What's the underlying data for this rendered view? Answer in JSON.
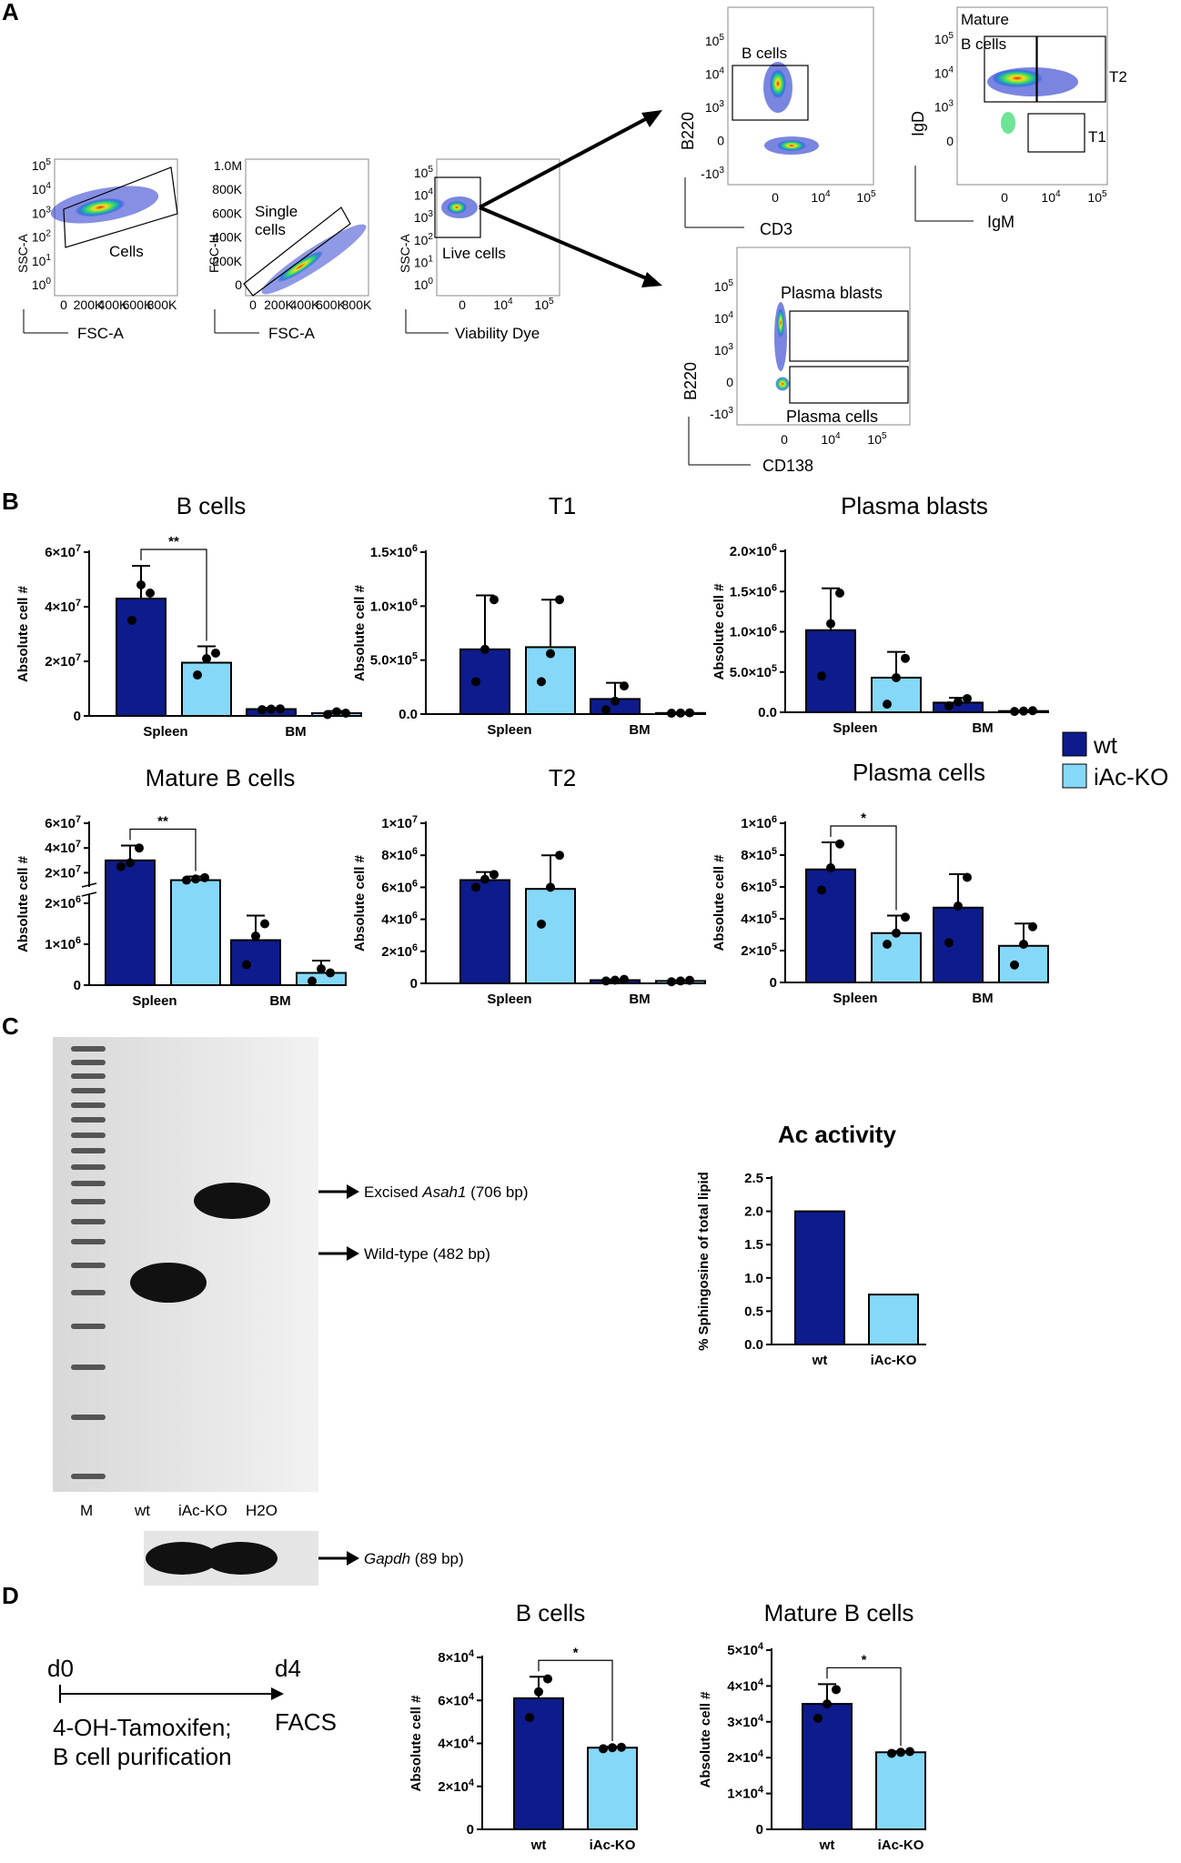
{
  "panels": {
    "A": "A",
    "B": "B",
    "C": "C",
    "D": "D"
  },
  "flow": {
    "p1": {
      "gate": "Cells",
      "ylabel": "SSC-A",
      "xlabel": "FSC-A",
      "yticks": [
        "10^5",
        "10^4",
        "10^3",
        "10^2",
        "10^1",
        "10^0"
      ],
      "xticks": [
        "0",
        "200K",
        "400K",
        "600K",
        "800K"
      ]
    },
    "p2": {
      "gate1": "Single",
      "gate2": "cells",
      "ylabel": "FSC-H",
      "xlabel": "FSC-A",
      "yticks": [
        "1.0M",
        "800K",
        "600K",
        "400K",
        "200K",
        "0"
      ],
      "xticks": [
        "0",
        "200K",
        "400K",
        "600K",
        "800K"
      ]
    },
    "p3": {
      "gate": "Live cells",
      "ylabel": "SSC-A",
      "xlabel": "Viability Dye",
      "yticks": [
        "10^5",
        "10^4",
        "10^3",
        "10^2",
        "10^1",
        "10^0"
      ],
      "xticks": [
        "0",
        "10^4",
        "10^5"
      ]
    },
    "p4": {
      "gate": "B cells",
      "ylabel": "B220",
      "xlabel": "CD3",
      "yticks": [
        "10^5",
        "10^4",
        "10^3",
        "0",
        "-10^3"
      ],
      "xticks": [
        "0",
        "10^4",
        "10^5"
      ]
    },
    "p5": {
      "gate1a": "Mature",
      "gate1b": "B cells",
      "gate2": "T2",
      "gate3": "T1",
      "ylabel": "IgD",
      "xlabel": "IgM",
      "yticks": [
        "10^5",
        "10^4",
        "10^3",
        "0"
      ],
      "xticks": [
        "0",
        "10^4",
        "10^5"
      ]
    },
    "p6": {
      "gate1": "Plasma blasts",
      "gate2": "Plasma cells",
      "ylabel": "B220",
      "xlabel": "CD138",
      "yticks": [
        "10^5",
        "10^4",
        "10^3",
        "0",
        "-10^3"
      ],
      "xticks": [
        "0",
        "10^4",
        "10^5"
      ]
    }
  },
  "legend": {
    "wt": "wt",
    "ko": "iAc-KO"
  },
  "colors": {
    "wt": "#0d1b8c",
    "ko": "#86d8f8",
    "dot": "#000000"
  },
  "gel": {
    "lanes": [
      "M",
      "wt",
      "iAc-KO",
      "H2O"
    ],
    "band1_prefix": "Excised ",
    "band1_gene": "Asah1",
    "band1_suffix": " (706 bp)",
    "band2": "Wild-type (482 bp)",
    "gapdh_gene": "Gapdh",
    "gapdh_suffix": " (89 bp)"
  },
  "timeline": {
    "d0": "d0",
    "d4": "d4",
    "line1": "4-OH-Tamoxifen;",
    "line2": "B cell purification",
    "facs": "FACS"
  },
  "sig_labels": {
    "b": "**",
    "mb": "**",
    "pc": "*",
    "db": "*",
    "dmb": "*"
  },
  "chart_data": [
    {
      "id": "b",
      "type": "bar",
      "title": "B cells",
      "ylabel": "Absolute cell #",
      "categories": [
        "Spleen",
        "BM"
      ],
      "ylim": [
        0,
        60000000
      ],
      "yticks": [
        "0",
        "2×10^7",
        "4×10^7",
        "6×10^7"
      ],
      "series": [
        {
          "name": "wt",
          "values": [
            43000000,
            2500000
          ],
          "sd": [
            12000000,
            400000
          ],
          "points": [
            [
              35000000,
              48000000,
              45000000
            ],
            [
              2300000,
              2500000,
              2600000
            ]
          ]
        },
        {
          "name": "iAc-KO",
          "values": [
            19500000,
            1000000
          ],
          "sd": [
            6000000,
            800000
          ],
          "points": [
            [
              15000000,
              21000000,
              23000000
            ],
            [
              500000,
              1500000,
              1000000
            ]
          ]
        }
      ]
    },
    {
      "id": "t1",
      "type": "bar",
      "title": "T1",
      "ylabel": "Absolute cell #",
      "categories": [
        "Spleen",
        "BM"
      ],
      "ylim": [
        0,
        1500000
      ],
      "yticks": [
        "0.0",
        "5.0×10^5",
        "1.0×10^6",
        "1.5×10^6"
      ],
      "series": [
        {
          "name": "wt",
          "values": [
            600000,
            140000
          ],
          "sd": [
            500000,
            150000
          ],
          "points": [
            [
              300000,
              600000,
              1060000
            ],
            [
              40000,
              120000,
              260000
            ]
          ]
        },
        {
          "name": "iAc-KO",
          "values": [
            620000,
            10000
          ],
          "sd": [
            440000,
            5000
          ],
          "points": [
            [
              300000,
              560000,
              1060000
            ],
            [
              8000,
              10000,
              12000
            ]
          ]
        }
      ]
    },
    {
      "id": "pb",
      "type": "bar",
      "title": "Plasma blasts",
      "ylabel": "Absolute cell #",
      "categories": [
        "Spleen",
        "BM"
      ],
      "ylim": [
        0,
        2000000
      ],
      "yticks": [
        "0.0",
        "5.0×10^5",
        "1.0×10^6",
        "1.5×10^6",
        "2.0×10^6"
      ],
      "series": [
        {
          "name": "wt",
          "values": [
            1020000,
            120000
          ],
          "sd": [
            520000,
            60000
          ],
          "points": [
            [
              450000,
              1100000,
              1480000
            ],
            [
              80000,
              130000,
              170000
            ]
          ]
        },
        {
          "name": "iAc-KO",
          "values": [
            430000,
            15000
          ],
          "sd": [
            320000,
            8000
          ],
          "points": [
            [
              100000,
              430000,
              670000
            ],
            [
              10000,
              15000,
              20000
            ]
          ]
        }
      ]
    },
    {
      "id": "mb",
      "type": "bar",
      "title": "Mature B cells",
      "ylabel": "Absolute cell #",
      "categories": [
        "Spleen",
        "BM"
      ],
      "broken_axis": true,
      "ylim_lower": [
        0,
        2000000
      ],
      "ylim_upper": [
        0,
        60000000
      ],
      "yticks": [
        "0",
        "1×10^6",
        "2×10^6",
        "2×10^7",
        "4×10^7",
        "6×10^7"
      ],
      "series": [
        {
          "name": "wt",
          "values": [
            30000000,
            1100000
          ],
          "sd": [
            12000000,
            600000
          ],
          "points": [
            [
              25000000,
              28000000,
              40000000
            ],
            [
              500000,
              1200000,
              1500000
            ]
          ]
        },
        {
          "name": "iAc-KO",
          "values": [
            14000000,
            300000
          ],
          "sd": [
            3000000,
            300000
          ],
          "points": [
            [
              14000000,
              15000000,
              16000000
            ],
            [
              100000,
              400000,
              300000
            ]
          ]
        }
      ]
    },
    {
      "id": "t2",
      "type": "bar",
      "title": "T2",
      "ylabel": "Absolute cell #",
      "categories": [
        "Spleen",
        "BM"
      ],
      "ylim": [
        0,
        10000000
      ],
      "yticks": [
        "0",
        "2×10^6",
        "4×10^6",
        "6×10^6",
        "8×10^6",
        "1×10^7"
      ],
      "series": [
        {
          "name": "wt",
          "values": [
            6450000,
            200000
          ],
          "sd": [
            500000,
            50000
          ],
          "points": [
            [
              6000000,
              6500000,
              6800000
            ],
            [
              150000,
              200000,
              250000
            ]
          ]
        },
        {
          "name": "iAc-KO",
          "values": [
            5900000,
            150000
          ],
          "sd": [
            2100000,
            40000
          ],
          "points": [
            [
              3700000,
              6000000,
              8000000
            ],
            [
              100000,
              150000,
              190000
            ]
          ]
        }
      ]
    },
    {
      "id": "pc",
      "type": "bar",
      "title": "Plasma cells",
      "ylabel": "Absolute cell #",
      "categories": [
        "Spleen",
        "BM"
      ],
      "ylim": [
        0,
        1000000
      ],
      "yticks": [
        "0",
        "2×10^5",
        "4×10^5",
        "6×10^5",
        "8×10^5",
        "1×10^6"
      ],
      "series": [
        {
          "name": "wt",
          "values": [
            710000,
            470000
          ],
          "sd": [
            170000,
            210000
          ],
          "points": [
            [
              580000,
              720000,
              870000
            ],
            [
              250000,
              480000,
              660000
            ]
          ]
        },
        {
          "name": "iAc-KO",
          "values": [
            310000,
            230000
          ],
          "sd": [
            110000,
            140000
          ],
          "points": [
            [
              240000,
              310000,
              410000
            ],
            [
              110000,
              240000,
              350000
            ]
          ]
        }
      ]
    },
    {
      "id": "ac",
      "type": "bar",
      "title": "Ac activity",
      "ylabel": "% Sphingosine of total lipid",
      "categories": [
        "wt",
        "iAc-KO"
      ],
      "ylim": [
        0,
        2.5
      ],
      "yticks": [
        "0.0",
        "0.5",
        "1.0",
        "1.5",
        "2.0",
        "2.5"
      ],
      "values": [
        2.0,
        0.75
      ]
    },
    {
      "id": "db",
      "type": "bar",
      "title": "B cells",
      "ylabel": "Absolute cell #",
      "categories": [
        "wt",
        "iAc-KO"
      ],
      "ylim": [
        0,
        80000
      ],
      "yticks": [
        "0",
        "2×10^4",
        "4×10^4",
        "6×10^4",
        "8×10^4"
      ],
      "values": [
        61000,
        38000
      ],
      "sd": [
        10000,
        500
      ],
      "points": [
        [
          52000,
          64000,
          70000
        ],
        [
          37500,
          38000,
          38200
        ]
      ]
    },
    {
      "id": "dmb",
      "type": "bar",
      "title": "Mature B cells",
      "ylabel": "Absolute cell #",
      "categories": [
        "wt",
        "iAc-KO"
      ],
      "ylim": [
        0,
        50000
      ],
      "yticks": [
        "0",
        "1×10^4",
        "2×10^4",
        "3×10^4",
        "4×10^4",
        "5×10^4"
      ],
      "values": [
        35000,
        21500
      ],
      "sd": [
        5500,
        300
      ],
      "points": [
        [
          31000,
          35000,
          39000
        ],
        [
          21200,
          21500,
          21700
        ]
      ]
    }
  ]
}
